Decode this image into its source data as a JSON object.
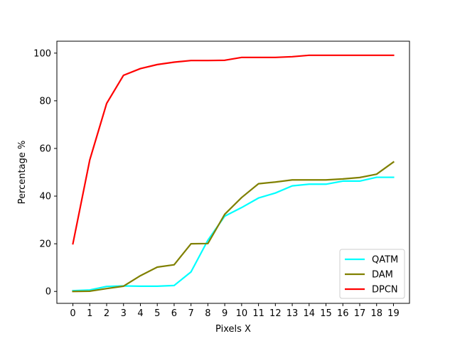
{
  "chart_data": {
    "type": "line",
    "title": "",
    "xlabel": "Pixels X",
    "ylabel": "Percentage %",
    "xlim": [
      -0.95,
      19.95
    ],
    "ylim": [
      -5,
      105
    ],
    "x_ticks": [
      "0",
      "1",
      "2",
      "3",
      "4",
      "5",
      "6",
      "7",
      "8",
      "9",
      "10",
      "11",
      "12",
      "13",
      "14",
      "15",
      "16",
      "17",
      "18",
      "19"
    ],
    "y_ticks": [
      "0",
      "20",
      "40",
      "60",
      "80",
      "100"
    ],
    "grid": false,
    "legend_position": "lower-right",
    "x": [
      0,
      1,
      2,
      3,
      4,
      5,
      6,
      7,
      8,
      9,
      10,
      11,
      12,
      13,
      14,
      15,
      16,
      17,
      18,
      19
    ],
    "series": [
      {
        "name": "QATM",
        "color": "#00ffff",
        "values": [
          0.3,
          0.6,
          2.1,
          2.3,
          2.2,
          2.2,
          2.5,
          8.2,
          21.5,
          31.6,
          35.2,
          39.2,
          41.3,
          44.3,
          45.0,
          45.0,
          46.3,
          46.3,
          47.9,
          47.9
        ]
      },
      {
        "name": "DAM",
        "color": "#808000",
        "values": [
          0.0,
          0.1,
          1.2,
          2.2,
          6.6,
          10.2,
          11.2,
          20.0,
          20.1,
          32.4,
          39.4,
          45.2,
          45.9,
          46.8,
          46.8,
          46.8,
          47.2,
          47.8,
          49.2,
          54.3
        ]
      },
      {
        "name": "DPCN",
        "color": "#ff0000",
        "values": [
          20.0,
          55.2,
          78.9,
          90.7,
          93.5,
          95.2,
          96.2,
          96.9,
          96.9,
          97.0,
          98.2,
          98.2,
          98.2,
          98.5,
          99.1,
          99.1,
          99.1,
          99.1,
          99.1,
          99.1
        ]
      }
    ]
  }
}
